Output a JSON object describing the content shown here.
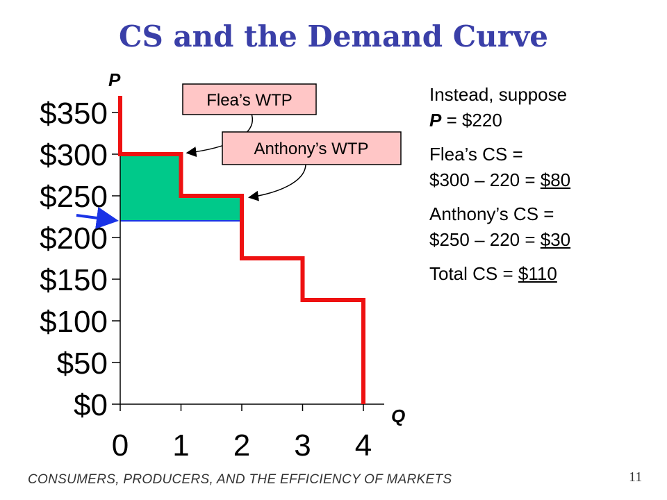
{
  "title": "CS and the Demand Curve",
  "chart_data": {
    "type": "line",
    "y_axis_letter": "P",
    "x_axis_letter": "Q",
    "x_ticks": [
      0,
      1,
      2,
      3,
      4
    ],
    "y_ticks": [
      0,
      50,
      100,
      150,
      200,
      250,
      300,
      350
    ],
    "y_tick_labels": [
      "$0",
      "$50",
      "$100",
      "$150",
      "$200",
      "$250",
      "$300",
      "$350"
    ],
    "xlim": [
      0,
      4
    ],
    "ylim": [
      0,
      350
    ],
    "series": [
      {
        "type": "step",
        "color": "#ee1111",
        "points": [
          [
            0,
            370
          ],
          [
            0,
            300
          ],
          [
            1,
            300
          ],
          [
            1,
            250
          ],
          [
            2,
            250
          ],
          [
            2,
            175
          ],
          [
            3,
            175
          ],
          [
            3,
            125
          ],
          [
            4,
            125
          ],
          [
            4,
            0
          ]
        ]
      }
    ],
    "price_line": 220,
    "cs_area_color": "#00c98a",
    "cs_steps": [
      {
        "from": 0,
        "to": 1,
        "top": 300
      },
      {
        "from": 1,
        "to": 2,
        "top": 250
      }
    ],
    "annotations": [
      {
        "text": "Flea’s WTP",
        "target": [
          1,
          300
        ]
      },
      {
        "text": "Anthony’s WTP",
        "target": [
          2,
          250
        ]
      }
    ],
    "annotation_bg": "#ffc6c6",
    "price_arrow_color": "#1a33e6"
  },
  "panel": {
    "line1": "Instead, suppose",
    "p_letter": "P",
    "p_value": " = $220",
    "flea_cs_label": "Flea’s CS =",
    "flea_calc": "$300 – 220 = ",
    "flea_result": "$80",
    "anthony_cs_label": "Anthony’s CS =",
    "anthony_calc": "$250 – 220 = ",
    "anthony_result": "$30",
    "total_label": "Total CS = ",
    "total_result": "$110"
  },
  "footer": "CONSUMERS, PRODUCERS, AND THE EFFICIENCY OF MARKETS",
  "page_number": "11"
}
